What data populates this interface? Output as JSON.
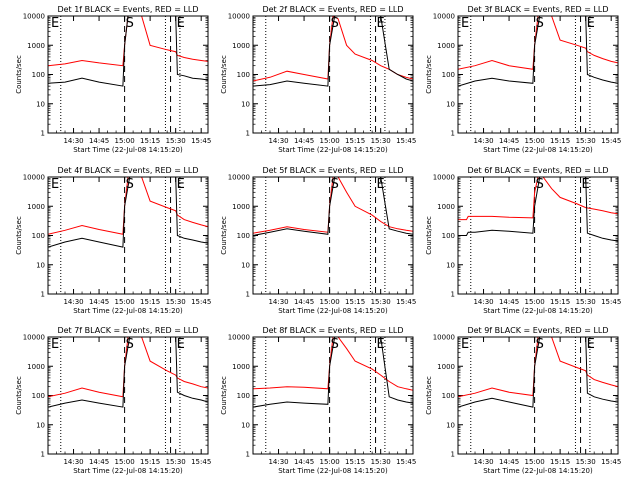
{
  "figure": {
    "xlabel": "Start Time (22-Jul-08 14:15:20)",
    "ylabel": "Counts/sec",
    "x_ticks": [
      "14:30",
      "14:45",
      "15:00",
      "15:15",
      "15:30",
      "15:45"
    ],
    "y_ticks": [
      "1",
      "10",
      "100",
      "1000",
      "10000"
    ],
    "colors": {
      "events": "#000000",
      "lld": "#ff0000"
    }
  },
  "chart_data": [
    {
      "type": "line",
      "title": "Det 1f BLACK = Events, RED = LLD",
      "xlabel": "Start Time (22-Jul-08 14:15:20)",
      "ylabel": "Counts/sec",
      "yscale": "log",
      "ylim": [
        1,
        10000
      ],
      "xlim_min": [
        0,
        94
      ],
      "markers": [
        {
          "label": "E",
          "t_min": 0
        },
        {
          "label": "S",
          "t_min": 45
        },
        {
          "label": "E",
          "t_min": 75
        }
      ],
      "series": [
        {
          "color": "#000000",
          "t_min": [
            0,
            10,
            20,
            30,
            44,
            45,
            47,
            55,
            60,
            70,
            75,
            76,
            80,
            85,
            90,
            94
          ],
          "values": [
            50,
            55,
            75,
            55,
            40,
            1000,
            10000,
            10000,
            10000,
            10000,
            10000,
            100,
            90,
            75,
            70,
            65
          ]
        },
        {
          "color": "#ff0000",
          "t_min": [
            0,
            10,
            20,
            30,
            44,
            45,
            47,
            55,
            60,
            70,
            75,
            76,
            80,
            85,
            90,
            94
          ],
          "values": [
            200,
            230,
            300,
            250,
            200,
            1000,
            10000,
            10000,
            1000,
            700,
            600,
            450,
            380,
            330,
            300,
            280
          ]
        }
      ]
    },
    {
      "type": "line",
      "title": "Det 2f BLACK = Events, RED = LLD",
      "xlabel": "Start Time (22-Jul-08 14:15:20)",
      "ylabel": "Counts/sec",
      "yscale": "log",
      "ylim": [
        1,
        10000
      ],
      "xlim_min": [
        0,
        94
      ],
      "markers": [
        {
          "label": "S",
          "t_min": 45
        },
        {
          "label": "E",
          "t_min": 72
        }
      ],
      "series": [
        {
          "color": "#000000",
          "t_min": [
            0,
            10,
            20,
            30,
            44,
            45,
            48,
            52,
            60,
            70,
            75,
            80,
            85,
            90,
            94
          ],
          "values": [
            40,
            45,
            60,
            50,
            40,
            1000,
            10000,
            10000,
            10000,
            10000,
            10000,
            150,
            100,
            70,
            60
          ]
        },
        {
          "color": "#ff0000",
          "t_min": [
            0,
            10,
            20,
            30,
            44,
            45,
            47,
            50,
            55,
            60,
            70,
            75,
            80,
            85,
            90,
            94
          ],
          "values": [
            60,
            80,
            130,
            100,
            70,
            1000,
            10000,
            8000,
            1000,
            500,
            300,
            200,
            150,
            100,
            80,
            70
          ]
        }
      ]
    },
    {
      "type": "line",
      "title": "Det 3f BLACK = Events, RED = LLD",
      "xlabel": "Start Time (22-Jul-08 14:15:20)",
      "ylabel": "Counts/sec",
      "yscale": "log",
      "ylim": [
        1,
        10000
      ],
      "xlim_min": [
        0,
        94
      ],
      "markers": [
        {
          "label": "E",
          "t_min": 0
        },
        {
          "label": "S",
          "t_min": 45
        },
        {
          "label": "E",
          "t_min": 75
        }
      ],
      "series": [
        {
          "color": "#000000",
          "t_min": [
            0,
            10,
            20,
            30,
            44,
            45,
            48,
            55,
            60,
            70,
            75,
            76,
            80,
            85,
            90,
            94
          ],
          "values": [
            40,
            60,
            75,
            60,
            50,
            1000,
            10000,
            10000,
            10000,
            10000,
            10000,
            100,
            80,
            65,
            55,
            50
          ]
        },
        {
          "color": "#ff0000",
          "t_min": [
            0,
            10,
            20,
            30,
            44,
            45,
            47,
            55,
            60,
            70,
            75,
            76,
            80,
            85,
            90,
            94
          ],
          "values": [
            150,
            200,
            300,
            200,
            150,
            1000,
            10000,
            10000,
            1500,
            1000,
            800,
            600,
            450,
            350,
            280,
            250
          ]
        }
      ]
    },
    {
      "type": "line",
      "title": "Det 4f BLACK = Events, RED = LLD",
      "xlabel": "Start Time (22-Jul-08 14:15:20)",
      "ylabel": "Counts/sec",
      "yscale": "log",
      "ylim": [
        1,
        10000
      ],
      "xlim_min": [
        0,
        94
      ],
      "markers": [
        {
          "label": "E",
          "t_min": 0
        },
        {
          "label": "S",
          "t_min": 45
        },
        {
          "label": "E",
          "t_min": 75
        }
      ],
      "series": [
        {
          "color": "#000000",
          "t_min": [
            0,
            10,
            20,
            30,
            44,
            45,
            48,
            55,
            60,
            70,
            75,
            76,
            80,
            85,
            90,
            94
          ],
          "values": [
            40,
            60,
            80,
            60,
            40,
            1000,
            10000,
            10000,
            10000,
            10000,
            10000,
            100,
            80,
            70,
            60,
            55
          ]
        },
        {
          "color": "#ff0000",
          "t_min": [
            0,
            10,
            20,
            30,
            44,
            45,
            47,
            55,
            60,
            70,
            75,
            76,
            80,
            85,
            90,
            94
          ],
          "values": [
            110,
            150,
            220,
            160,
            110,
            1000,
            10000,
            10000,
            1500,
            900,
            700,
            500,
            350,
            280,
            230,
            200
          ]
        }
      ]
    },
    {
      "type": "line",
      "title": "Det 5f BLACK = Events, RED = LLD",
      "xlabel": "Start Time (22-Jul-08 14:15:20)",
      "ylabel": "Counts/sec",
      "yscale": "log",
      "ylim": [
        1,
        10000
      ],
      "xlim_min": [
        0,
        94
      ],
      "markers": [
        {
          "label": "S",
          "t_min": 45
        },
        {
          "label": "E",
          "t_min": 72
        }
      ],
      "series": [
        {
          "color": "#000000",
          "t_min": [
            0,
            10,
            20,
            30,
            44,
            45,
            48,
            55,
            60,
            70,
            75,
            80,
            85,
            90,
            94
          ],
          "values": [
            100,
            130,
            170,
            140,
            110,
            1000,
            10000,
            10000,
            10000,
            10000,
            10000,
            170,
            140,
            120,
            110
          ]
        },
        {
          "color": "#ff0000",
          "t_min": [
            0,
            10,
            20,
            30,
            44,
            45,
            47,
            50,
            55,
            60,
            70,
            75,
            80,
            85,
            90,
            94
          ],
          "values": [
            120,
            150,
            200,
            160,
            130,
            1000,
            10000,
            10000,
            3000,
            1000,
            500,
            300,
            200,
            170,
            150,
            140
          ]
        }
      ]
    },
    {
      "type": "line",
      "title": "Det 6f BLACK = Events, RED = LLD",
      "xlabel": "Start Time (22-Jul-08 14:15:20)",
      "ylabel": "Counts/sec",
      "yscale": "log",
      "ylim": [
        1,
        10000
      ],
      "xlim_min": [
        0,
        94
      ],
      "markers": [
        {
          "label": "S",
          "t_min": 45
        },
        {
          "label": "E",
          "t_min": 72
        }
      ],
      "series": [
        {
          "color": "#000000",
          "t_min": [
            0,
            5,
            6,
            10,
            20,
            30,
            44,
            45,
            48,
            55,
            60,
            70,
            75,
            76,
            80,
            85,
            90,
            94
          ],
          "values": [
            100,
            100,
            130,
            130,
            150,
            140,
            120,
            1000,
            10000,
            10000,
            10000,
            10000,
            10000,
            120,
            100,
            80,
            70,
            65
          ]
        },
        {
          "color": "#ff0000",
          "t_min": [
            0,
            5,
            6,
            10,
            20,
            30,
            44,
            45,
            47,
            50,
            55,
            60,
            70,
            75,
            80,
            85,
            90,
            94
          ],
          "values": [
            350,
            350,
            450,
            450,
            450,
            420,
            400,
            3000,
            10000,
            10000,
            4000,
            2000,
            1200,
            900,
            800,
            700,
            600,
            550
          ]
        }
      ]
    },
    {
      "type": "line",
      "title": "Det 7f BLACK = Events, RED = LLD",
      "xlabel": "Start Time (22-Jul-08 14:15:20)",
      "ylabel": "Counts/sec",
      "yscale": "log",
      "ylim": [
        1,
        10000
      ],
      "xlim_min": [
        0,
        94
      ],
      "markers": [
        {
          "label": "E",
          "t_min": 0
        },
        {
          "label": "S",
          "t_min": 45
        },
        {
          "label": "E",
          "t_min": 75
        }
      ],
      "series": [
        {
          "color": "#000000",
          "t_min": [
            0,
            10,
            20,
            30,
            44,
            45,
            48,
            55,
            60,
            70,
            75,
            76,
            80,
            85,
            90,
            94
          ],
          "values": [
            40,
            55,
            70,
            55,
            40,
            1000,
            10000,
            10000,
            10000,
            10000,
            10000,
            130,
            100,
            80,
            70,
            60
          ]
        },
        {
          "color": "#ff0000",
          "t_min": [
            0,
            10,
            20,
            30,
            44,
            45,
            47,
            55,
            60,
            70,
            75,
            76,
            80,
            85,
            90,
            94
          ],
          "values": [
            90,
            120,
            180,
            130,
            90,
            1000,
            10000,
            10000,
            1500,
            700,
            500,
            400,
            300,
            250,
            200,
            180
          ]
        }
      ]
    },
    {
      "type": "line",
      "title": "Det 8f BLACK = Events, RED = LLD",
      "xlabel": "Start Time (22-Jul-08 14:15:20)",
      "ylabel": "Counts/sec",
      "yscale": "log",
      "ylim": [
        1,
        10000
      ],
      "xlim_min": [
        0,
        94
      ],
      "markers": [
        {
          "label": "S",
          "t_min": 45
        },
        {
          "label": "E",
          "t_min": 72
        }
      ],
      "series": [
        {
          "color": "#000000",
          "t_min": [
            0,
            10,
            20,
            30,
            44,
            45,
            48,
            55,
            60,
            70,
            75,
            80,
            85,
            90,
            94
          ],
          "values": [
            40,
            50,
            60,
            55,
            50,
            1000,
            10000,
            10000,
            10000,
            10000,
            10000,
            90,
            70,
            60,
            55
          ]
        },
        {
          "color": "#ff0000",
          "t_min": [
            0,
            10,
            20,
            30,
            44,
            45,
            47,
            50,
            55,
            60,
            70,
            75,
            80,
            85,
            90,
            94
          ],
          "values": [
            170,
            180,
            200,
            190,
            170,
            1000,
            10000,
            10000,
            4000,
            1500,
            800,
            500,
            300,
            200,
            170,
            150
          ]
        }
      ]
    },
    {
      "type": "line",
      "title": "Det 9f BLACK = Events, RED = LLD",
      "xlabel": "Start Time (22-Jul-08 14:15:20)",
      "ylabel": "Counts/sec",
      "yscale": "log",
      "ylim": [
        1,
        10000
      ],
      "xlim_min": [
        0,
        94
      ],
      "markers": [
        {
          "label": "E",
          "t_min": 0
        },
        {
          "label": "S",
          "t_min": 45
        },
        {
          "label": "E",
          "t_min": 75
        }
      ],
      "series": [
        {
          "color": "#000000",
          "t_min": [
            0,
            10,
            20,
            30,
            44,
            45,
            48,
            55,
            60,
            70,
            75,
            76,
            80,
            85,
            90,
            94
          ],
          "values": [
            40,
            60,
            80,
            60,
            40,
            1000,
            10000,
            10000,
            10000,
            10000,
            10000,
            120,
            90,
            75,
            65,
            60
          ]
        },
        {
          "color": "#ff0000",
          "t_min": [
            0,
            10,
            20,
            30,
            44,
            45,
            47,
            55,
            60,
            70,
            75,
            76,
            80,
            85,
            90,
            94
          ],
          "values": [
            90,
            120,
            180,
            130,
            100,
            1000,
            10000,
            10000,
            1500,
            900,
            700,
            500,
            350,
            280,
            230,
            200
          ]
        }
      ]
    }
  ]
}
